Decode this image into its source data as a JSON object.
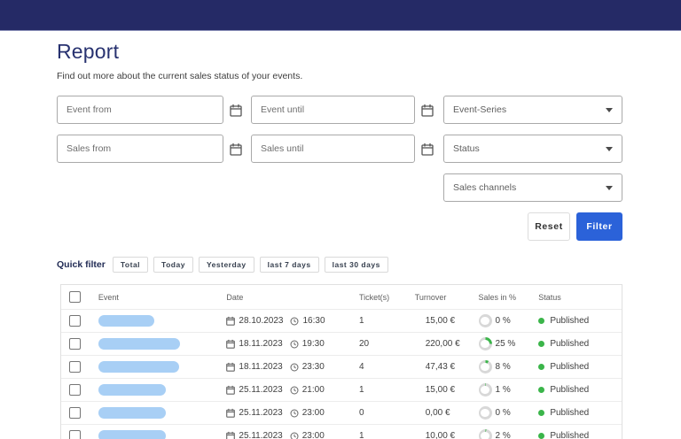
{
  "page": {
    "title": "Report",
    "subtitle": "Find out more about the current sales status of your events."
  },
  "filters": {
    "event_from_placeholder": "Event from",
    "event_until_placeholder": "Event until",
    "sales_from_placeholder": "Sales from",
    "sales_until_placeholder": "Sales until",
    "event_series_label": "Event-Series",
    "status_label": "Status",
    "sales_channels_label": "Sales channels",
    "reset_label": "Reset",
    "filter_label": "Filter"
  },
  "quick_filter": {
    "label": "Quick filter",
    "buttons": [
      "Total",
      "Today",
      "Yesterday",
      "last 7 days",
      "last 30 days"
    ]
  },
  "table": {
    "columns": {
      "event": "Event",
      "date": "Date",
      "tickets": "Ticket(s)",
      "turnover": "Turnover",
      "sales": "Sales in %",
      "status": "Status"
    },
    "rows": [
      {
        "redaction_width": 63,
        "date": "28.10.2023",
        "time": "16:30",
        "tickets": "1",
        "turnover": "15,00 €",
        "sales_label": "0 %",
        "sales_percent": 0,
        "status": "Published"
      },
      {
        "redaction_width": 92,
        "date": "18.11.2023",
        "time": "19:30",
        "tickets": "20",
        "turnover": "220,00 €",
        "sales_label": "25 %",
        "sales_percent": 25,
        "status": "Published"
      },
      {
        "redaction_width": 91,
        "date": "18.11.2023",
        "time": "23:30",
        "tickets": "4",
        "turnover": "47,43 €",
        "sales_label": "8 %",
        "sales_percent": 8,
        "status": "Published"
      },
      {
        "redaction_width": 76,
        "date": "25.11.2023",
        "time": "21:00",
        "tickets": "1",
        "turnover": "15,00 €",
        "sales_label": "1 %",
        "sales_percent": 1,
        "status": "Published"
      },
      {
        "redaction_width": 76,
        "date": "25.11.2023",
        "time": "23:00",
        "tickets": "0",
        "turnover": "0,00 €",
        "sales_label": "0 %",
        "sales_percent": 0,
        "status": "Published"
      },
      {
        "redaction_width": 76,
        "date": "25.11.2023",
        "time": "23:00",
        "tickets": "1",
        "turnover": "10,00 €",
        "sales_label": "2 %",
        "sales_percent": 2,
        "status": "Published"
      }
    ]
  },
  "colors": {
    "top_bar": "#252a66",
    "primary_blue": "#2b62d9",
    "published_green": "#3bb54a",
    "redaction_blue": "#a8cff5",
    "ring_track": "#d8d8d8"
  }
}
